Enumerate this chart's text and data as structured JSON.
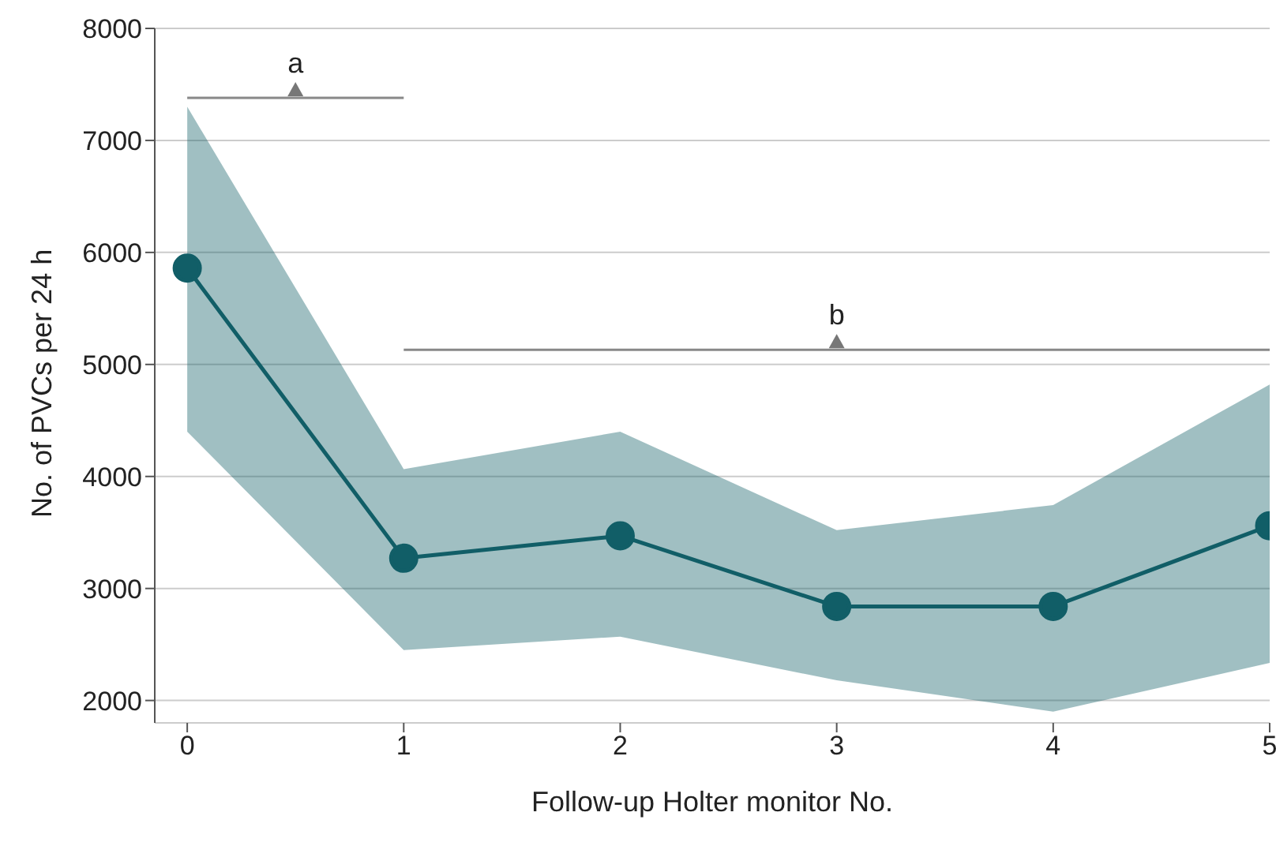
{
  "chart_data": {
    "type": "line",
    "xlabel": "Follow-up Holter monitor No.",
    "ylabel": "No. of PVCs per 24 h",
    "x": [
      0,
      1,
      2,
      3,
      4,
      5
    ],
    "series": [
      {
        "color": "#115e67",
        "values": [
          5860,
          3270,
          3470,
          2840,
          2840,
          3560
        ],
        "lower": [
          4400,
          2450,
          2570,
          2180,
          1900,
          2335
        ],
        "upper": [
          7300,
          4065,
          4400,
          3520,
          3745,
          4820
        ]
      }
    ],
    "xlim": [
      -0.15,
      5
    ],
    "xticks": [
      0,
      1,
      2,
      3,
      4,
      5
    ],
    "ylim": [
      1800,
      8000
    ],
    "yticks": [
      2000,
      3000,
      4000,
      5000,
      6000,
      7000,
      8000
    ],
    "grid": "y",
    "marker": "circle",
    "line_style": "solid",
    "annotations": [
      "a",
      "b"
    ]
  }
}
